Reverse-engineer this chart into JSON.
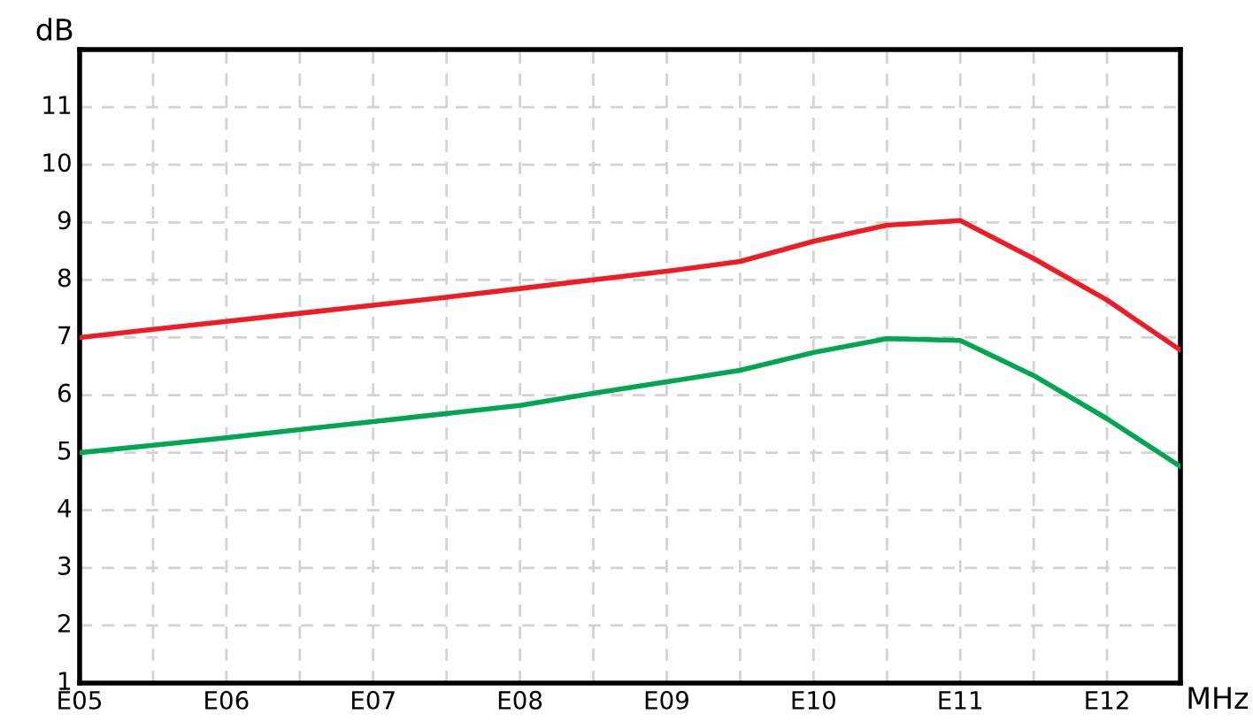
{
  "chart_data": {
    "type": "line",
    "xlabel": "MHz",
    "ylabel": "dB",
    "categories": [
      "E05",
      null,
      "E06",
      null,
      "E07",
      null,
      "E08",
      null,
      "E09",
      null,
      "E10",
      null,
      "E11",
      null,
      "E12",
      null
    ],
    "ylim": [
      1,
      12
    ],
    "yticks": [
      1,
      2,
      3,
      4,
      5,
      6,
      7,
      8,
      9,
      10,
      11
    ],
    "grid": true,
    "line_style": "solid",
    "marker": "none",
    "series": [
      {
        "color": "#ee1c25",
        "values": [
          7.0,
          7.14,
          7.28,
          7.42,
          7.56,
          7.7,
          7.85,
          8.0,
          8.15,
          8.32,
          8.67,
          8.95,
          9.03,
          8.37,
          7.65,
          6.78
        ]
      },
      {
        "color": "#00a651",
        "values": [
          5.0,
          5.13,
          5.26,
          5.4,
          5.54,
          5.68,
          5.82,
          6.03,
          6.23,
          6.43,
          6.74,
          6.98,
          6.95,
          6.34,
          5.59,
          4.76
        ]
      }
    ]
  }
}
